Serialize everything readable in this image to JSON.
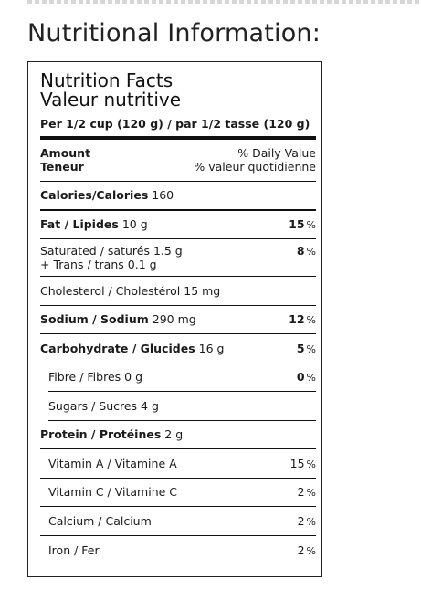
{
  "page": {
    "heading": "Nutritional Information:"
  },
  "label": {
    "title_en": "Nutrition Facts",
    "title_fr": "Valeur nutritive",
    "serving": "Per 1/2 cup (120 g) / par 1/2 tasse (120 g)",
    "header": {
      "amount_en": "Amount",
      "amount_fr": "Teneur",
      "dv_en": "% Daily Value",
      "dv_fr": "% valeur quotidienne"
    },
    "calories": {
      "label": "Calories/Calories",
      "value": "160"
    },
    "fat": {
      "label": "Fat / Lipides",
      "value": "10 g",
      "dv": "15",
      "unit": "%"
    },
    "saturated": {
      "label": "Saturated / saturés",
      "value": "1.5 g",
      "trans_label": "+ Trans / trans",
      "trans_value": "0.1 g",
      "dv": "8",
      "unit": "%"
    },
    "cholesterol": {
      "label": "Cholesterol / Cholestérol",
      "value": "15 mg"
    },
    "sodium": {
      "label": "Sodium / Sodium",
      "value": "290 mg",
      "dv": "12",
      "unit": "%"
    },
    "carbohydrate": {
      "label": "Carbohydrate / Glucides",
      "value": "16 g",
      "dv": "5",
      "unit": "%"
    },
    "fibre": {
      "label": "Fibre / Fibres",
      "value": "0 g",
      "dv": "0",
      "unit": "%"
    },
    "sugars": {
      "label": "Sugars / Sucres",
      "value": "4 g"
    },
    "protein": {
      "label": "Protein / Protéines",
      "value": "2 g"
    },
    "vitamin_a": {
      "label": "Vitamin A / Vitamine A",
      "dv": "15",
      "unit": "%"
    },
    "vitamin_c": {
      "label": "Vitamin C / Vitamine C",
      "dv": "2",
      "unit": "%"
    },
    "calcium": {
      "label": "Calcium / Calcium",
      "dv": "2",
      "unit": "%"
    },
    "iron": {
      "label": "Iron / Fer",
      "dv": "2",
      "unit": "%"
    }
  }
}
